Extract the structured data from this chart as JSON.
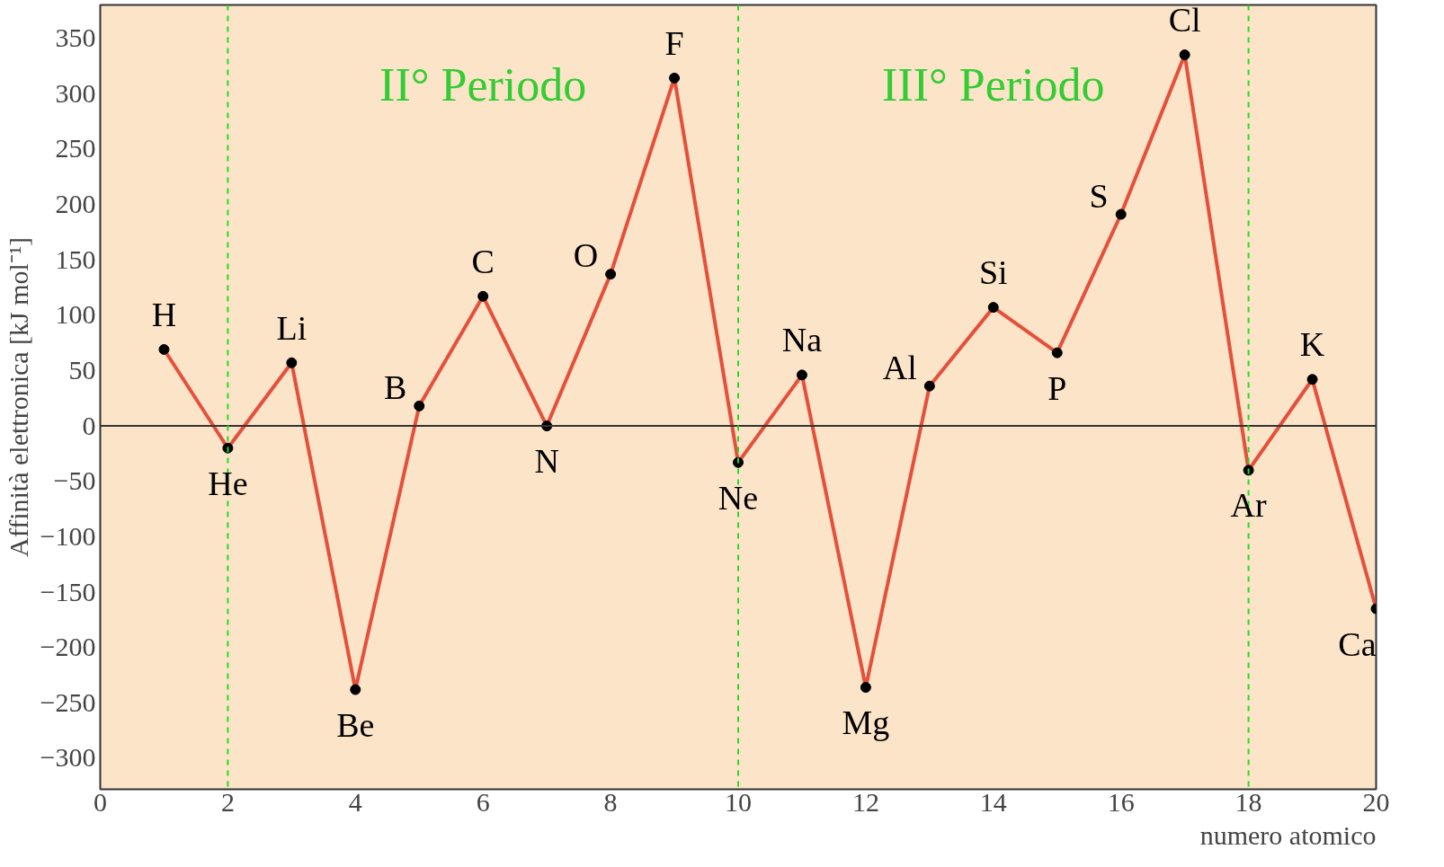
{
  "chart_data": {
    "type": "line",
    "xlabel": "numero atomico",
    "ylabel": "Affinità elettronica [kJ mol⁻¹]",
    "x": [
      1,
      2,
      3,
      4,
      5,
      6,
      7,
      8,
      9,
      10,
      11,
      12,
      13,
      14,
      15,
      16,
      17,
      18,
      19,
      20
    ],
    "series": [
      {
        "color": "#e5503c",
        "values": [
          69,
          -20,
          57,
          -238,
          18,
          117,
          0,
          137,
          314,
          -33,
          46,
          -236,
          36,
          107,
          66,
          191,
          335,
          -40,
          42,
          -165
        ]
      }
    ],
    "marker": "circle",
    "line_style": "solid",
    "grid": false,
    "xlim": [
      0,
      20
    ],
    "xticks": [
      0,
      2,
      4,
      6,
      8,
      10,
      12,
      14,
      16,
      18,
      20
    ],
    "ylim": [
      -328,
      380
    ],
    "yticks": [
      {
        "value": -300,
        "label": "−300"
      },
      {
        "value": -250,
        "label": "−250"
      },
      {
        "value": -200,
        "label": "−200"
      },
      {
        "value": -150,
        "label": "−150"
      },
      {
        "value": -100,
        "label": "−100"
      },
      {
        "value": -50,
        "label": "−50"
      },
      0,
      50,
      100,
      150,
      200,
      250,
      300,
      350
    ],
    "ref_lines": [
      {
        "axis": "y",
        "value": 0,
        "color": "#333333",
        "line_style": "solid"
      },
      {
        "axis": "x",
        "value": 2,
        "color": "#22dd22",
        "line_style": "dashed"
      },
      {
        "axis": "x",
        "value": 10,
        "color": "#22dd22",
        "line_style": "dashed"
      },
      {
        "axis": "x",
        "value": 18,
        "color": "#22dd22",
        "line_style": "dashed"
      }
    ],
    "annotations": [
      "II° Periodo",
      "III° Periodo",
      {
        "text": "H",
        "x": 1,
        "y": 69
      },
      {
        "text": "He",
        "x": 2,
        "y": -20
      },
      {
        "text": "Li",
        "x": 3,
        "y": 57
      },
      {
        "text": "Be",
        "x": 4,
        "y": -238
      },
      {
        "text": "B",
        "x": 5,
        "y": 18
      },
      {
        "text": "C",
        "x": 6,
        "y": 117
      },
      {
        "text": "N",
        "x": 7,
        "y": 0
      },
      {
        "text": "O",
        "x": 8,
        "y": 137
      },
      {
        "text": "F",
        "x": 9,
        "y": 314
      },
      {
        "text": "Ne",
        "x": 10,
        "y": -33
      },
      {
        "text": "Na",
        "x": 11,
        "y": 46
      },
      {
        "text": "Mg",
        "x": 12,
        "y": -236
      },
      {
        "text": "Al",
        "x": 13,
        "y": 36
      },
      {
        "text": "Si",
        "x": 14,
        "y": 107
      },
      {
        "text": "P",
        "x": 15,
        "y": 66
      },
      {
        "text": "S",
        "x": 16,
        "y": 191
      },
      {
        "text": "Cl",
        "x": 17,
        "y": 335
      },
      {
        "text": "Ar",
        "x": 18,
        "y": -40
      },
      {
        "text": "K",
        "x": 19,
        "y": 42
      },
      {
        "text": "Ca",
        "x": 20,
        "y": -165
      }
    ]
  }
}
